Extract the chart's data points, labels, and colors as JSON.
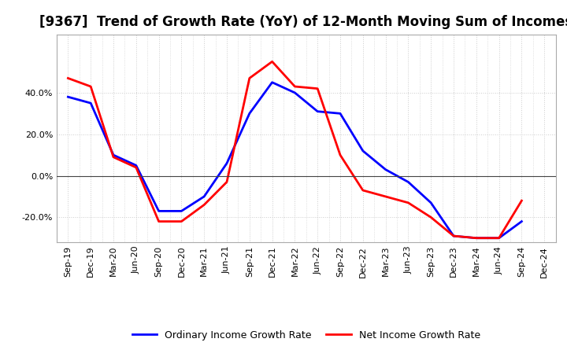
{
  "title": "[9367]  Trend of Growth Rate (YoY) of 12-Month Moving Sum of Incomes",
  "ylim": [
    -0.32,
    0.68
  ],
  "yticks": [
    -0.2,
    0.0,
    0.2,
    0.4
  ],
  "background_color": "#ffffff",
  "plot_bg_color": "#ffffff",
  "grid_color": "#cccccc",
  "labels": [
    "Sep-19",
    "Dec-19",
    "Mar-20",
    "Jun-20",
    "Sep-20",
    "Dec-20",
    "Mar-21",
    "Jun-21",
    "Sep-21",
    "Dec-21",
    "Mar-22",
    "Jun-22",
    "Sep-22",
    "Dec-22",
    "Mar-23",
    "Jun-23",
    "Sep-23",
    "Dec-23",
    "Mar-24",
    "Jun-24",
    "Sep-24",
    "Dec-24"
  ],
  "ordinary_income": [
    0.38,
    0.35,
    0.1,
    0.05,
    -0.17,
    -0.17,
    -0.1,
    0.06,
    0.3,
    0.45,
    0.4,
    0.31,
    0.3,
    0.12,
    0.03,
    -0.03,
    -0.13,
    -0.29,
    -0.3,
    -0.3,
    -0.22,
    null
  ],
  "net_income": [
    0.47,
    0.43,
    0.09,
    0.04,
    -0.22,
    -0.22,
    -0.14,
    -0.03,
    0.47,
    0.55,
    0.43,
    0.42,
    0.1,
    -0.07,
    -0.1,
    -0.13,
    -0.2,
    -0.29,
    -0.3,
    -0.3,
    -0.12,
    null
  ],
  "ordinary_color": "#0000ff",
  "net_color": "#ff0000",
  "line_width": 2.0,
  "legend_ordinary": "Ordinary Income Growth Rate",
  "legend_net": "Net Income Growth Rate",
  "title_fontsize": 12,
  "tick_fontsize": 8,
  "legend_fontsize": 9
}
